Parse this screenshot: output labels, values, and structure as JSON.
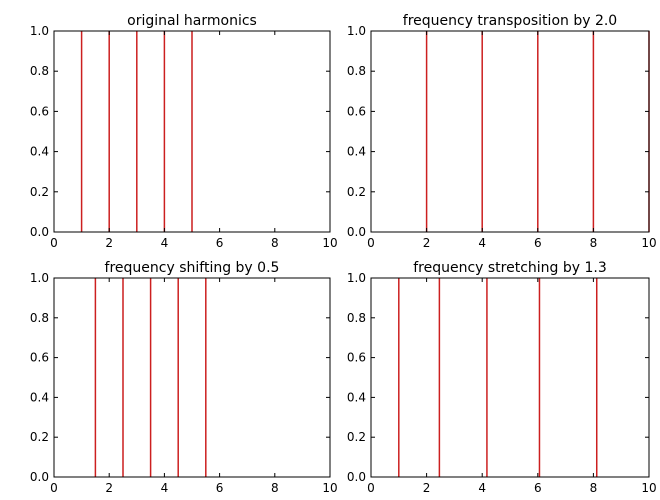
{
  "colors": {
    "line": "#cc1f1f",
    "axis": "#000000",
    "background": "#ffffff"
  },
  "chart_data": [
    {
      "type": "bar",
      "title": "original harmonics",
      "xlim": [
        0,
        10
      ],
      "ylim": [
        0,
        1
      ],
      "xticks": [
        0,
        2,
        4,
        6,
        8,
        10
      ],
      "xtick_labels": [
        "0",
        "2",
        "4",
        "6",
        "8",
        "10"
      ],
      "yticks": [
        0.0,
        0.2,
        0.4,
        0.6,
        0.8,
        1.0
      ],
      "ytick_labels": [
        "0.0",
        "0.2",
        "0.4",
        "0.6",
        "0.8",
        "1.0"
      ],
      "grid": false,
      "x": [
        1,
        2,
        3,
        4,
        5
      ],
      "values": [
        1,
        1,
        1,
        1,
        1
      ]
    },
    {
      "type": "bar",
      "title": "frequency transposition by 2.0",
      "xlim": [
        0,
        10
      ],
      "ylim": [
        0,
        1
      ],
      "xticks": [
        0,
        2,
        4,
        6,
        8,
        10
      ],
      "xtick_labels": [
        "0",
        "2",
        "4",
        "6",
        "8",
        "10"
      ],
      "yticks": [
        0.0,
        0.2,
        0.4,
        0.6,
        0.8,
        1.0
      ],
      "ytick_labels": [
        "0.0",
        "0.2",
        "0.4",
        "0.6",
        "0.8",
        "1.0"
      ],
      "grid": false,
      "x": [
        2,
        4,
        6,
        8,
        10
      ],
      "values": [
        1,
        1,
        1,
        1,
        1
      ]
    },
    {
      "type": "bar",
      "title": "frequency shifting by 0.5",
      "xlim": [
        0,
        10
      ],
      "ylim": [
        0,
        1
      ],
      "xticks": [
        0,
        2,
        4,
        6,
        8,
        10
      ],
      "xtick_labels": [
        "0",
        "2",
        "4",
        "6",
        "8",
        "10"
      ],
      "yticks": [
        0.0,
        0.2,
        0.4,
        0.6,
        0.8,
        1.0
      ],
      "ytick_labels": [
        "0.0",
        "0.2",
        "0.4",
        "0.6",
        "0.8",
        "1.0"
      ],
      "grid": false,
      "x": [
        1.5,
        2.5,
        3.5,
        4.5,
        5.5
      ],
      "values": [
        1,
        1,
        1,
        1,
        1
      ]
    },
    {
      "type": "bar",
      "title": "frequency stretching by 1.3",
      "xlim": [
        0,
        10
      ],
      "ylim": [
        0,
        1
      ],
      "xticks": [
        0,
        2,
        4,
        6,
        8,
        10
      ],
      "xtick_labels": [
        "0",
        "2",
        "4",
        "6",
        "8",
        "10"
      ],
      "yticks": [
        0.0,
        0.2,
        0.4,
        0.6,
        0.8,
        1.0
      ],
      "ytick_labels": [
        "0.0",
        "0.2",
        "0.4",
        "0.6",
        "0.8",
        "1.0"
      ],
      "grid": false,
      "x": [
        1.0,
        2.46,
        4.17,
        6.06,
        8.12
      ],
      "values": [
        1,
        1,
        1,
        1,
        1
      ]
    }
  ]
}
